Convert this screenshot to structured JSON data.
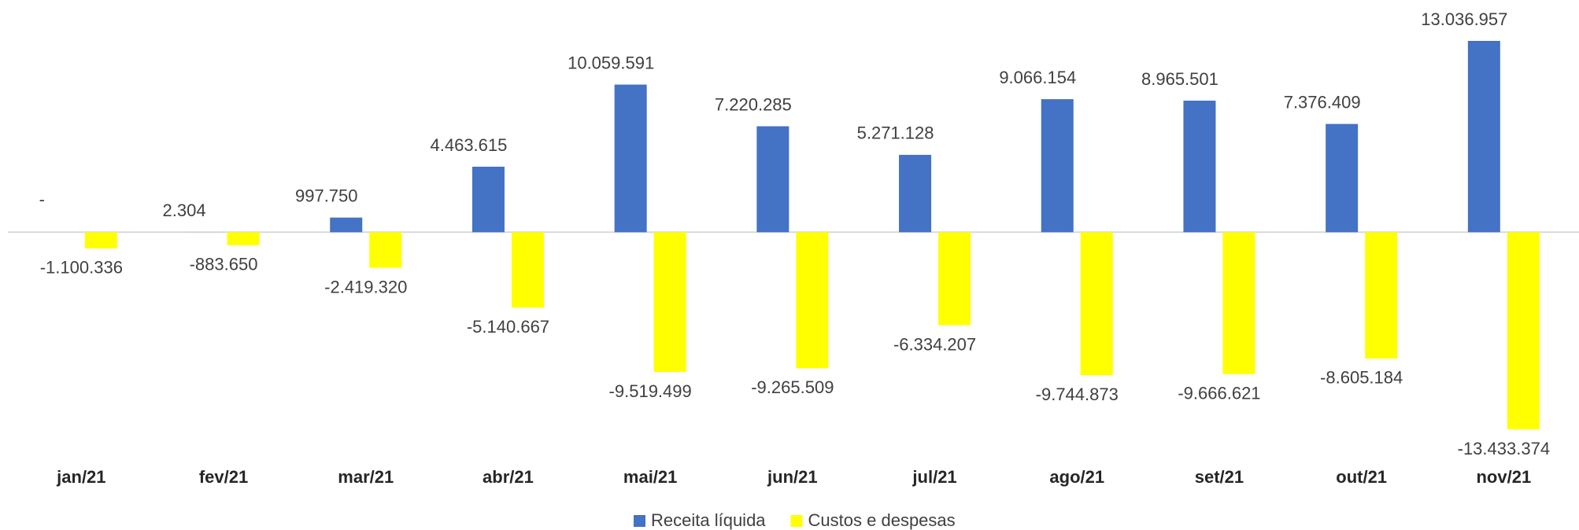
{
  "chart_data": {
    "type": "bar",
    "categories": [
      "jan/21",
      "fev/21",
      "mar/21",
      "abr/21",
      "mai/21",
      "jun/21",
      "jul/21",
      "ago/21",
      "set/21",
      "out/21",
      "nov/21"
    ],
    "series": [
      {
        "name": "Receita líquida",
        "color": "#4472c4",
        "values": [
          0,
          2304,
          997750,
          4463615,
          10059591,
          7220285,
          5271128,
          9066154,
          8965501,
          7376409,
          13036957
        ],
        "value_labels": [
          "-",
          "2.304",
          "997.750",
          "4.463.615",
          "10.059.591",
          "7.220.285",
          "5.271.128",
          "9.066.154",
          "8.965.501",
          "7.376.409",
          "13.036.957"
        ]
      },
      {
        "name": "Custos e despesas",
        "color": "#ffff00",
        "values": [
          -1100336,
          -883650,
          -2419320,
          -5140667,
          -9519499,
          -9265509,
          -6334207,
          -9744873,
          -9666621,
          -8605184,
          -13433374
        ],
        "value_labels": [
          "-1.100.336",
          "-883.650",
          "-2.419.320",
          "-5.140.667",
          "-9.519.499",
          "-9.265.509",
          "-6.334.207",
          "-9.744.873",
          "-9.666.621",
          "-8.605.184",
          "-13.433.374"
        ]
      }
    ],
    "legend": "bottom"
  }
}
